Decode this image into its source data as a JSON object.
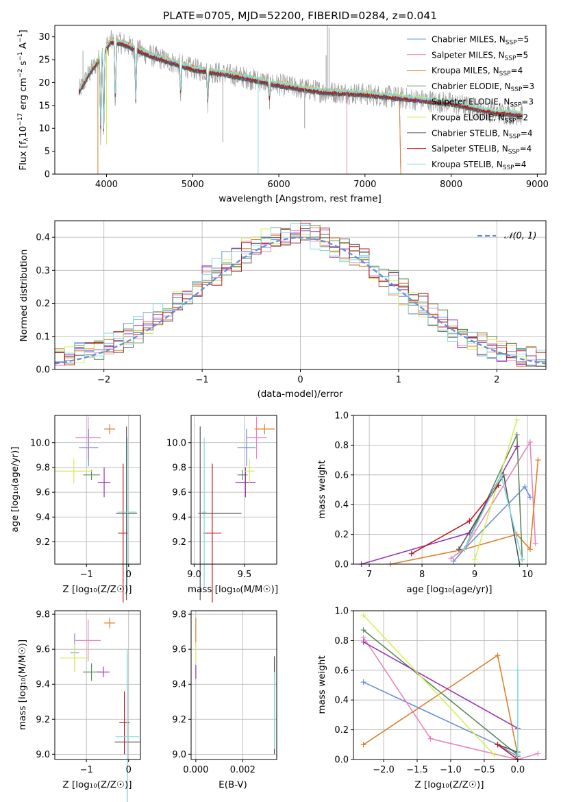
{
  "figure_title": "PLATE=0705, MJD=52200, FIBERID=0284, z=0.041",
  "colors": {
    "Chabrier MILES": "#6a8fd8",
    "Salpeter MILES": "#e685bd",
    "Kroupa MILES": "#e07f2a",
    "Chabrier ELODIE": "#5c8a5a",
    "Salpeter ELODIE": "#9932b8",
    "Kroupa ELODIE": "#d3ef5a",
    "Chabrier STELIB": "#555555",
    "Salpeter STELIB": "#bb1a1a",
    "Kroupa STELIB": "#80dbdb",
    "observed": "#9e9e9e",
    "normal": "#5f8fdb"
  },
  "chart_data": [
    {
      "id": "spectrum",
      "type": "line",
      "xlabel": "wavelength [Angstrom, rest frame]",
      "ylabel": "Flux [f_λ 10^-17 erg cm^-2 s^-1 A^-1]",
      "xlim": [
        3400,
        9100
      ],
      "ylim": [
        0,
        32.5
      ],
      "xticks": [
        4000,
        5000,
        6000,
        7000,
        8000,
        9000
      ],
      "yticks": [
        0,
        5,
        10,
        15,
        20,
        25,
        30
      ],
      "grid": false,
      "legend_position": "top-right",
      "legend": [
        {
          "model": "Chabrier MILES",
          "label": "Chabrier MILES, N",
          "sub": "SSP",
          "suffix": "=5"
        },
        {
          "model": "Salpeter MILES",
          "label": "Salpeter MILES, N",
          "sub": "SSP",
          "suffix": "=5"
        },
        {
          "model": "Kroupa MILES",
          "label": "Kroupa MILES, N",
          "sub": "SSP",
          "suffix": "=4"
        },
        {
          "model": "Chabrier ELODIE",
          "label": "Chabrier ELODIE, N",
          "sub": "SSP",
          "suffix": "=3"
        },
        {
          "model": "Salpeter ELODIE",
          "label": "Salpeter ELODIE, N",
          "sub": "SSP",
          "suffix": "=3"
        },
        {
          "model": "Kroupa ELODIE",
          "label": "Kroupa ELODIE, N",
          "sub": "SSP",
          "suffix": "=2"
        },
        {
          "model": "Chabrier STELIB",
          "label": "Chabrier STELIB, N",
          "sub": "SSP",
          "suffix": "=4"
        },
        {
          "model": "Salpeter STELIB",
          "label": "Salpeter STELIB, N",
          "sub": "SSP",
          "suffix": "=4"
        },
        {
          "model": "Kroupa STELIB",
          "label": "Kroupa STELIB, N",
          "sub": "SSP",
          "suffix": "=4"
        }
      ],
      "continuum": {
        "x": [
          3680,
          3800,
          3950,
          4050,
          4200,
          4500,
          5000,
          5500,
          6000,
          6500,
          7000,
          7500,
          8000,
          8500,
          8830
        ],
        "y": [
          18,
          22,
          26,
          29,
          28.5,
          26,
          23,
          21.5,
          19.5,
          18,
          17.5,
          16.5,
          15.5,
          13.5,
          13
        ]
      },
      "dips": [
        {
          "x": 3933,
          "y": 7.5
        },
        {
          "x": 3968,
          "y": 8
        },
        {
          "x": 4102,
          "y": 14
        },
        {
          "x": 4340,
          "y": 15
        },
        {
          "x": 4861,
          "y": 17
        },
        {
          "x": 5175,
          "y": 15
        },
        {
          "x": 5890,
          "y": 16
        }
      ],
      "spikes": [
        {
          "model": "observed",
          "x": 6563,
          "y": 32.5
        },
        {
          "model": "observed",
          "x": 6583,
          "y": 32
        },
        {
          "model": "observed",
          "x": 6549,
          "y": 26
        },
        {
          "model": "observed",
          "x": 5350,
          "y": 7
        },
        {
          "model": "observed",
          "x": 6300,
          "y": 10
        },
        {
          "model": "observed",
          "x": 3727,
          "y": 27
        },
        {
          "model": "Kroupa MILES",
          "x": 3900,
          "y": 0
        },
        {
          "model": "Kroupa STELIB",
          "x": 5760,
          "y": 0
        },
        {
          "model": "Salpeter MILES",
          "x": 6790,
          "y": 0
        },
        {
          "model": "Kroupa ELODIE",
          "x": 4000,
          "y": 6.5
        }
      ],
      "miles_cutoff": 7400
    },
    {
      "id": "residuals",
      "type": "step-histogram",
      "xlabel": "(data-model)/error",
      "ylabel": "Normed distribution",
      "xlim": [
        -2.5,
        2.5
      ],
      "ylim": [
        0,
        0.45
      ],
      "xticks": [
        -2,
        -1,
        0,
        1,
        2
      ],
      "yticks": [
        0.0,
        0.1,
        0.2,
        0.3,
        0.4
      ],
      "grid": true,
      "bin_width": 0.1,
      "legend_position": "top-right",
      "normal_label": "𝒩(0, 1)"
    },
    {
      "id": "age-vs-Z",
      "type": "errorbar",
      "xlabel": "Z [log₁₀(Z/Z☉)]",
      "ylabel": "age  [log₁₀(age/yr)]",
      "xlim": [
        -1.75,
        0.28
      ],
      "ylim": [
        9.02,
        10.22
      ],
      "xticks": [
        -1,
        0
      ],
      "yticks": [
        9.2,
        9.4,
        9.6,
        9.8,
        10.0
      ],
      "grid": true,
      "points": [
        {
          "model": "Chabrier MILES",
          "x": -0.95,
          "y": 9.96,
          "xerr": 0.23,
          "yerr": 0.15
        },
        {
          "model": "Salpeter MILES",
          "x": -0.96,
          "y": 10.04,
          "xerr": 0.3,
          "yerr": 0.17
        },
        {
          "model": "Kroupa MILES",
          "x": -0.45,
          "y": 10.11,
          "xerr": 0.13,
          "yerr": 0.04
        },
        {
          "model": "Chabrier ELODIE",
          "x": -0.88,
          "y": 9.74,
          "xerr": 0.2,
          "yerr": 0.04
        },
        {
          "model": "Salpeter ELODIE",
          "x": -0.58,
          "y": 9.68,
          "xerr": 0.15,
          "yerr": 0.12
        },
        {
          "model": "Kroupa ELODIE",
          "x": -1.3,
          "y": 9.77,
          "xerr": 0.45,
          "yerr": 0.1
        },
        {
          "model": "Chabrier STELIB",
          "x": -0.05,
          "y": 9.43,
          "xerr": 0.25,
          "yerr": 0.7
        },
        {
          "model": "Salpeter STELIB",
          "x": -0.13,
          "y": 9.27,
          "xerr": 0.12,
          "yerr": 0.56
        },
        {
          "model": "Kroupa STELIB",
          "x": -0.03,
          "y": 9.44,
          "xerr": 0.22,
          "yerr": 0.6
        }
      ]
    },
    {
      "id": "age-vs-mass",
      "type": "errorbar",
      "xlabel": "mass [log₁₀(M/M☉)]",
      "ylabel": "",
      "xlim": [
        8.97,
        9.82
      ],
      "ylim": [
        9.02,
        10.22
      ],
      "xticks": [
        9.0,
        9.5
      ],
      "yticks": [
        9.2,
        9.4,
        9.6,
        9.8,
        10.0
      ],
      "grid": true,
      "points": [
        {
          "model": "Chabrier MILES",
          "x": 9.52,
          "y": 9.96,
          "xerr": 0.09,
          "yerr": 0.15
        },
        {
          "model": "Salpeter MILES",
          "x": 9.62,
          "y": 10.04,
          "xerr": 0.1,
          "yerr": 0.17
        },
        {
          "model": "Kroupa MILES",
          "x": 9.7,
          "y": 10.11,
          "xerr": 0.1,
          "yerr": 0.04
        },
        {
          "model": "Chabrier ELODIE",
          "x": 9.48,
          "y": 9.74,
          "xerr": 0.05,
          "yerr": 0.04
        },
        {
          "model": "Salpeter ELODIE",
          "x": 9.51,
          "y": 9.68,
          "xerr": 0.1,
          "yerr": 0.12
        },
        {
          "model": "Kroupa ELODIE",
          "x": 9.55,
          "y": 9.77,
          "xerr": 0.05,
          "yerr": 0.1
        },
        {
          "model": "Chabrier STELIB",
          "x": 9.06,
          "y": 9.43,
          "xerr": 0.02,
          "yerr": 0.7
        },
        {
          "model": "Salpeter STELIB",
          "x": 9.18,
          "y": 9.27,
          "xerr": 0.09,
          "yerr": 0.56
        },
        {
          "model": "Kroupa STELIB",
          "x": 9.1,
          "y": 9.44,
          "xerr": 0.02,
          "yerr": 0.6
        },
        {
          "model": "Chabrier STELIB",
          "x": 9.27,
          "y": 9.43,
          "xerr": 0.2,
          "yerr": 0.0
        }
      ]
    },
    {
      "id": "massweight-vs-age",
      "type": "line",
      "xlabel": "age  [log₁₀(age/yr)]",
      "ylabel": "mass weight",
      "xlim": [
        6.7,
        10.35
      ],
      "ylim": [
        0,
        1.0
      ],
      "xticks": [
        7,
        8,
        9,
        10
      ],
      "yticks": [
        0.0,
        0.2,
        0.4,
        0.6,
        0.8,
        1.0
      ],
      "grid": true,
      "series": [
        {
          "model": "Chabrier MILES",
          "x": [
            8.6,
            8.8,
            9.95,
            10.05
          ],
          "y": [
            0.02,
            0.1,
            0.52,
            0.45
          ]
        },
        {
          "model": "Salpeter MILES",
          "x": [
            8.55,
            8.8,
            10.05,
            10.15
          ],
          "y": [
            0.04,
            0.1,
            0.82,
            0.14
          ]
        },
        {
          "model": "Kroupa MILES",
          "x": [
            7.4,
            8.8,
            9.8,
            10.05,
            10.2
          ],
          "y": [
            0.0,
            0.1,
            0.2,
            0.1,
            0.7
          ]
        },
        {
          "model": "Chabrier ELODIE",
          "x": [
            8.8,
            9.8,
            9.9
          ],
          "y": [
            0.1,
            0.87,
            0.03
          ]
        },
        {
          "model": "Salpeter ELODIE",
          "x": [
            6.85,
            8.9,
            9.8
          ],
          "y": [
            0.0,
            0.21,
            0.79
          ]
        },
        {
          "model": "Kroupa ELODIE",
          "x": [
            9.0,
            9.8
          ],
          "y": [
            0.03,
            0.97
          ]
        },
        {
          "model": "Chabrier STELIB",
          "x": [
            8.7,
            9.55,
            9.85
          ],
          "y": [
            0.1,
            0.6,
            0.0
          ]
        },
        {
          "model": "Salpeter STELIB",
          "x": [
            7.8,
            8.9,
            9.45
          ],
          "y": [
            0.07,
            0.29,
            0.53
          ]
        },
        {
          "model": "Kroupa STELIB",
          "x": [
            8.8,
            9.5,
            9.9
          ],
          "y": [
            0.1,
            0.6,
            0.03
          ]
        }
      ]
    },
    {
      "id": "mass-vs-Z",
      "type": "errorbar",
      "xlabel": "Z [log₁₀(Z/Z☉)]",
      "ylabel": "mass [log₁₀(M/M☉)]",
      "xlim": [
        -1.75,
        0.28
      ],
      "ylim": [
        8.97,
        9.82
      ],
      "xticks": [
        -1,
        0
      ],
      "yticks": [
        9.0,
        9.2,
        9.4,
        9.6,
        9.8
      ],
      "grid": true,
      "points": [
        {
          "model": "Chabrier MILES",
          "x": -1.28,
          "y": 9.58,
          "xerr": 0.1,
          "yerr": 0.11
        },
        {
          "model": "Salpeter MILES",
          "x": -0.96,
          "y": 9.65,
          "xerr": 0.3,
          "yerr": 0.12
        },
        {
          "model": "Kroupa MILES",
          "x": -0.45,
          "y": 9.75,
          "xerr": 0.13,
          "yerr": 0.03
        },
        {
          "model": "Chabrier ELODIE",
          "x": -0.88,
          "y": 9.47,
          "xerr": 0.2,
          "yerr": 0.05
        },
        {
          "model": "Salpeter ELODIE",
          "x": -0.6,
          "y": 9.47,
          "xerr": 0.15,
          "yerr": 0.03
        },
        {
          "model": "Kroupa ELODIE",
          "x": -1.28,
          "y": 9.55,
          "xerr": 0.35,
          "yerr": 0.08
        },
        {
          "model": "Chabrier STELIB",
          "x": -0.03,
          "y": 9.07,
          "xerr": 0.3,
          "yerr": 0.5
        },
        {
          "model": "Salpeter STELIB",
          "x": -0.1,
          "y": 9.18,
          "xerr": 0.12,
          "yerr": 0.18
        },
        {
          "model": "Kroupa STELIB",
          "x": -0.03,
          "y": 9.1,
          "xerr": 0.28,
          "yerr": 0.5
        }
      ]
    },
    {
      "id": "mass-vs-EBV",
      "type": "errorbar",
      "xlabel": "E(B-V)",
      "ylabel": "",
      "xlim": [
        -0.0002,
        0.00345
      ],
      "ylim": [
        8.97,
        9.82
      ],
      "xticks": [
        0.0,
        0.002
      ],
      "xtick_labels": [
        "0.000",
        "0.002"
      ],
      "yticks": [
        9.0,
        9.2,
        9.4,
        9.6,
        9.8
      ],
      "grid": true,
      "points": [
        {
          "model": "Kroupa MILES",
          "x": 0.0,
          "y": 9.7,
          "xerr": 0,
          "yerr": 0.08
        },
        {
          "model": "Salpeter ELODIE",
          "x": 0.0,
          "y": 9.47,
          "xerr": 0,
          "yerr": 0.04
        },
        {
          "model": "Kroupa ELODIE",
          "x": 0.0,
          "y": 9.58,
          "xerr": 0,
          "yerr": 0.06
        },
        {
          "model": "Chabrier STELIB",
          "x": 0.00335,
          "y": 9.28,
          "xerr": 0,
          "yerr": 0.28
        },
        {
          "model": "Kroupa STELIB",
          "x": 0.00335,
          "y": 9.25,
          "xerr": 0,
          "yerr": 0.22
        }
      ]
    },
    {
      "id": "massweight-vs-Z",
      "type": "line",
      "xlabel": "Z [log₁₀(Z/Z☉)]",
      "ylabel": "mass weight",
      "xlim": [
        -2.45,
        0.42
      ],
      "ylim": [
        0,
        1.0
      ],
      "xticks": [
        -2.0,
        -1.5,
        -1.0,
        -0.5,
        0.0
      ],
      "xtick_labels": [
        "−2.0",
        "−1.5",
        "−1.0",
        "−0.5",
        "0.0"
      ],
      "yticks": [
        0.0,
        0.2,
        0.4,
        0.6,
        0.8,
        1.0
      ],
      "grid": true,
      "series": [
        {
          "model": "Chabrier MILES",
          "x": [
            -2.3,
            -0.3,
            0.0
          ],
          "y": [
            0.52,
            0.1,
            0.02
          ]
        },
        {
          "model": "Salpeter MILES",
          "x": [
            -2.3,
            -1.3,
            0.0,
            0.3
          ],
          "y": [
            0.82,
            0.14,
            0.0,
            0.04
          ]
        },
        {
          "model": "Kroupa MILES",
          "x": [
            -2.3,
            -0.3,
            0.0
          ],
          "y": [
            0.1,
            0.7,
            0.03
          ]
        },
        {
          "model": "Chabrier ELODIE",
          "x": [
            -2.3,
            0.0
          ],
          "y": [
            0.87,
            0.03
          ]
        },
        {
          "model": "Salpeter ELODIE",
          "x": [
            -2.3,
            0.0
          ],
          "y": [
            0.79,
            0.21
          ]
        },
        {
          "model": "Kroupa ELODIE",
          "x": [
            -2.3,
            -0.35
          ],
          "y": [
            0.97,
            0.03
          ]
        },
        {
          "model": "Chabrier STELIB",
          "x": [
            -0.3,
            0.0
          ],
          "y": [
            0.1,
            0.05
          ]
        },
        {
          "model": "Salpeter STELIB",
          "x": [
            -0.3,
            0.0
          ],
          "y": [
            0.1,
            0.0
          ]
        },
        {
          "model": "Kroupa STELIB",
          "x": [
            0.0,
            0.0
          ],
          "y": [
            0.03,
            0.6
          ]
        }
      ]
    }
  ]
}
